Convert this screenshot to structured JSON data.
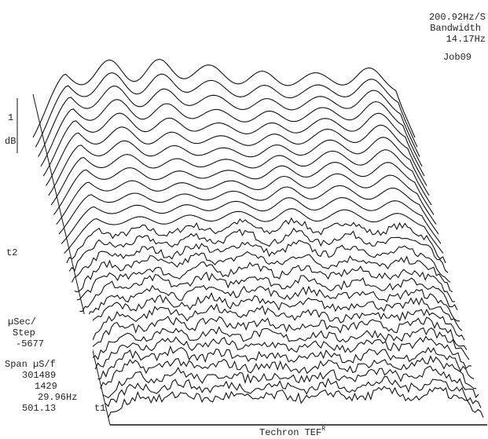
{
  "header": {
    "rate": "200.92Hz/S",
    "bandwidth_label": "Bandwidth",
    "bandwidth": "14.17Hz",
    "job": "Job09"
  },
  "scale": {
    "value": "1",
    "unit": "dB"
  },
  "axis": {
    "far_time": "t2",
    "near_time": "t1"
  },
  "settings": {
    "step_label_1": "µSec/",
    "step_label_2": "Step",
    "step": "-5677",
    "span_label": "Span µS/f",
    "span_1": "301489",
    "span_2": "1429",
    "frequency": "29.96Hz",
    "start": "501.13"
  },
  "footer": {
    "brand": "Techron TEF",
    "mark": "R"
  }
}
